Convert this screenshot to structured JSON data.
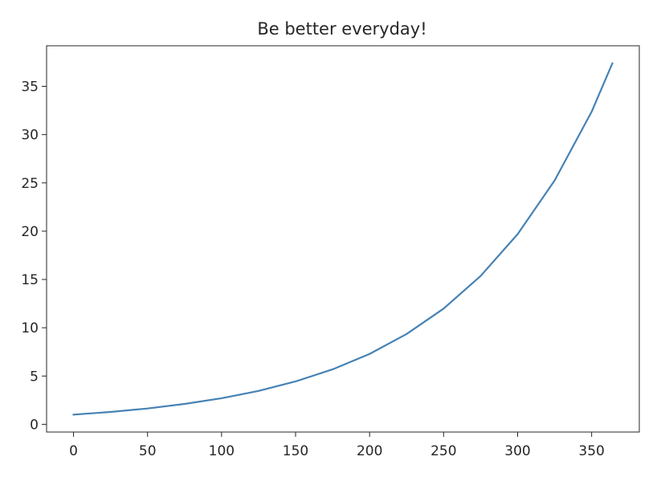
{
  "chart_data": {
    "type": "line",
    "title": "Be better everyday!",
    "xlabel": "",
    "ylabel": "",
    "xlim": [
      -18.2,
      382.2
    ],
    "ylim": [
      -0.8,
      39.2
    ],
    "grid": false,
    "legend": "none",
    "x_ticks": [
      0,
      50,
      100,
      150,
      200,
      250,
      300,
      350
    ],
    "x_tick_labels": [
      "0",
      "50",
      "100",
      "150",
      "200",
      "250",
      "300",
      "350"
    ],
    "y_ticks": [
      0,
      5,
      10,
      15,
      20,
      25,
      30,
      35
    ],
    "y_tick_labels": [
      "0",
      "5",
      "10",
      "15",
      "20",
      "25",
      "30",
      "35"
    ],
    "series": [
      {
        "color": "#4682b4",
        "x": [
          0,
          25,
          50,
          75,
          100,
          125,
          150,
          175,
          200,
          225,
          250,
          275,
          300,
          325,
          350,
          364
        ],
        "y": [
          1.0,
          1.28,
          1.64,
          2.11,
          2.7,
          3.46,
          4.44,
          5.69,
          7.29,
          9.35,
          11.98,
          15.36,
          19.69,
          25.25,
          32.37,
          37.38
        ]
      }
    ]
  }
}
